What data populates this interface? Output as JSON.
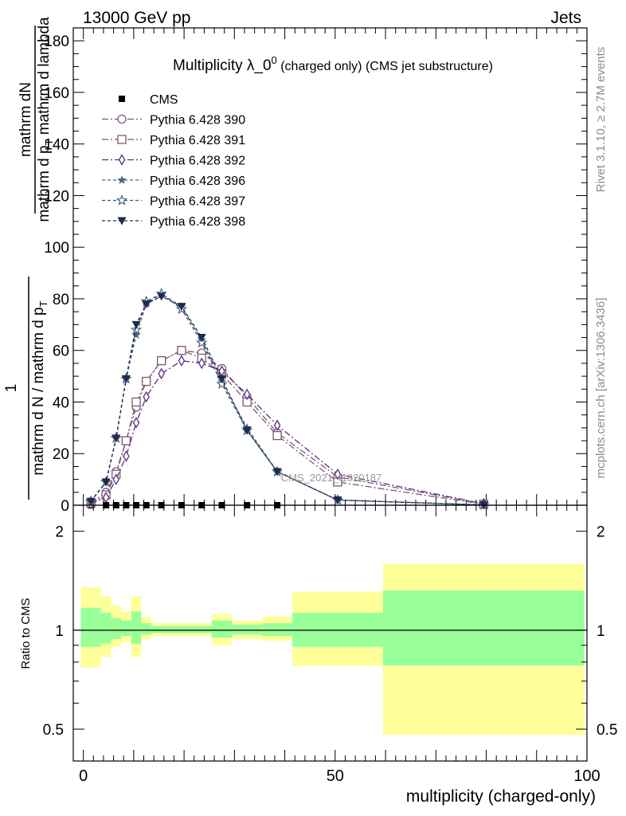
{
  "header": {
    "left": "13000 GeV pp",
    "right": "Jets"
  },
  "side_labels": {
    "rivet": "Rivet 3.1.10, ≥ 2.7M events",
    "mcplots": "mcplots.cern.ch [arXiv:1306.3436]"
  },
  "watermark": "CMS_2021_I1920187",
  "colors": {
    "cms": "#000000",
    "p390": "#7b5a7b",
    "p391": "#7b5a6a",
    "p392": "#5a2d85",
    "p396": "#4a6878",
    "p397": "#3d5a74",
    "p398": "#1e2a50",
    "band_outer": "#ffff99",
    "band_inner": "#99ff99"
  },
  "chart_data": [
    {
      "type": "line",
      "title_main": "Multiplicity λ_0",
      "title_sup": "0",
      "title_rest": " (charged only) (CMS jet substructure)",
      "ylabel_top_num": "mathrm dN",
      "ylabel_top_den": "mathrm d p",
      "ylabel_top_den_sub": "T",
      "ylabel_top_den2": " mathrm d lambda",
      "ylabel_one": "1",
      "ylabel_bottom": "mathrm d N / mathrm d p",
      "ylabel_bottom_sub": "T",
      "xlim": [
        -2,
        100
      ],
      "ylim": [
        0,
        185
      ],
      "yticks": [
        0,
        20,
        40,
        60,
        80,
        100,
        120,
        140,
        160,
        180
      ],
      "legend_position": "top-left",
      "series": [
        {
          "name": "CMS",
          "marker": "square",
          "color_key": "cms",
          "x": [
            1.5,
            4.5,
            6.5,
            8.5,
            10.5,
            12.5,
            15.5,
            19.5,
            23.5,
            27.5,
            32.5,
            38.5
          ],
          "y": [
            0,
            0,
            0,
            0,
            0,
            0,
            0,
            0,
            0,
            0,
            0,
            0
          ]
        },
        {
          "name": "Pythia 6.428 390",
          "marker": "circle",
          "color_key": "p390",
          "dash": "8,3,2,3",
          "x": [
            1.5,
            4.5,
            6.5,
            8.5,
            10.5,
            12.5,
            15.5,
            19.5,
            23.5,
            27.5,
            32.5,
            38.5,
            50.5,
            79.5
          ],
          "y": [
            0.8,
            5,
            13,
            25,
            38,
            48,
            56,
            60,
            59,
            53,
            42,
            28,
            11,
            0.5
          ]
        },
        {
          "name": "Pythia 6.428 391",
          "marker": "square-open",
          "color_key": "p391",
          "dash": "8,3,2,3",
          "x": [
            1.5,
            4.5,
            6.5,
            8.5,
            10.5,
            12.5,
            15.5,
            19.5,
            23.5,
            27.5,
            32.5,
            38.5,
            50.5,
            79.5
          ],
          "y": [
            0.8,
            4,
            12,
            25,
            40,
            48,
            56,
            60,
            57,
            51,
            40,
            27,
            9,
            0.4
          ]
        },
        {
          "name": "Pythia 6.428 392",
          "marker": "diamond",
          "color_key": "p392",
          "dash": "8,3,2,3",
          "x": [
            1.5,
            4.5,
            6.5,
            8.5,
            10.5,
            12.5,
            15.5,
            19.5,
            23.5,
            27.5,
            32.5,
            38.5,
            50.5,
            79.5
          ],
          "y": [
            0.6,
            3,
            10,
            19,
            32,
            42,
            51,
            56,
            55,
            52,
            43,
            31,
            12,
            0.6
          ]
        },
        {
          "name": "Pythia 6.428 396",
          "marker": "star",
          "color_key": "p396",
          "dash": "4,3",
          "x": [
            1.5,
            4.5,
            6.5,
            8.5,
            10.5,
            12.5,
            15.5,
            19.5,
            23.5,
            27.5,
            32.5,
            38.5,
            50.5,
            79.5
          ],
          "y": [
            1.5,
            9,
            26,
            49,
            66,
            78,
            82,
            77,
            64,
            48,
            30,
            13,
            2,
            0.1
          ]
        },
        {
          "name": "Pythia 6.428 397",
          "marker": "star-open",
          "color_key": "p397",
          "dash": "4,3",
          "x": [
            1.5,
            4.5,
            6.5,
            8.5,
            10.5,
            12.5,
            15.5,
            19.5,
            23.5,
            27.5,
            32.5,
            38.5,
            50.5,
            79.5
          ],
          "y": [
            1.5,
            9,
            26,
            49,
            68,
            79,
            82,
            76,
            63,
            47,
            29,
            13,
            2,
            0.1
          ]
        },
        {
          "name": "Pythia 6.428 398",
          "marker": "triangle-down",
          "color_key": "p398",
          "dash": "4,3",
          "x": [
            1.5,
            4.5,
            6.5,
            8.5,
            10.5,
            12.5,
            15.5,
            19.5,
            23.5,
            27.5,
            32.5,
            38.5,
            50.5,
            79.5
          ],
          "y": [
            1.5,
            9,
            26,
            49,
            70,
            78,
            81,
            77,
            65,
            49,
            29,
            13,
            2,
            0.1
          ]
        }
      ]
    },
    {
      "type": "area",
      "ylabel": "Ratio to CMS",
      "xlabel": "multiplicity (charged-only)",
      "xlim": [
        -2,
        100
      ],
      "ylim": [
        0.4,
        2.4
      ],
      "yscale": "log",
      "yticks_labeled": [
        0.5,
        1,
        2
      ],
      "xticks_labeled": [
        0,
        50,
        100
      ],
      "reference_line": 1,
      "bins": [
        {
          "x0": -0.5,
          "x1": 3.5,
          "outer": [
            0.77,
            1.35
          ],
          "inner": [
            0.89,
            1.17
          ]
        },
        {
          "x0": 3.5,
          "x1": 5.5,
          "outer": [
            0.83,
            1.27
          ],
          "inner": [
            0.91,
            1.13
          ]
        },
        {
          "x0": 5.5,
          "x1": 7.5,
          "outer": [
            0.89,
            1.19
          ],
          "inner": [
            0.94,
            1.09
          ]
        },
        {
          "x0": 7.5,
          "x1": 9.5,
          "outer": [
            0.92,
            1.14
          ],
          "inner": [
            0.96,
            1.07
          ]
        },
        {
          "x0": 9.5,
          "x1": 11.5,
          "outer": [
            0.83,
            1.27
          ],
          "inner": [
            0.91,
            1.14
          ]
        },
        {
          "x0": 11.5,
          "x1": 13.5,
          "outer": [
            0.94,
            1.1
          ],
          "inner": [
            0.97,
            1.05
          ]
        },
        {
          "x0": 13.5,
          "x1": 17.5,
          "outer": [
            0.96,
            1.05
          ],
          "inner": [
            0.98,
            1.03
          ]
        },
        {
          "x0": 17.5,
          "x1": 21.5,
          "outer": [
            0.96,
            1.05
          ],
          "inner": [
            0.98,
            1.03
          ]
        },
        {
          "x0": 21.5,
          "x1": 25.5,
          "outer": [
            0.96,
            1.05
          ],
          "inner": [
            0.98,
            1.03
          ]
        },
        {
          "x0": 25.5,
          "x1": 29.5,
          "outer": [
            0.9,
            1.12
          ],
          "inner": [
            0.95,
            1.07
          ]
        },
        {
          "x0": 29.5,
          "x1": 35.5,
          "outer": [
            0.94,
            1.07
          ],
          "inner": [
            0.97,
            1.04
          ]
        },
        {
          "x0": 35.5,
          "x1": 41.5,
          "outer": [
            0.93,
            1.1
          ],
          "inner": [
            0.96,
            1.05
          ]
        },
        {
          "x0": 41.5,
          "x1": 59.5,
          "outer": [
            0.78,
            1.31
          ],
          "inner": [
            0.89,
            1.13
          ]
        },
        {
          "x0": 59.5,
          "x1": 99.5,
          "outer": [
            0.48,
            1.59
          ],
          "inner": [
            0.78,
            1.32
          ]
        }
      ]
    }
  ]
}
